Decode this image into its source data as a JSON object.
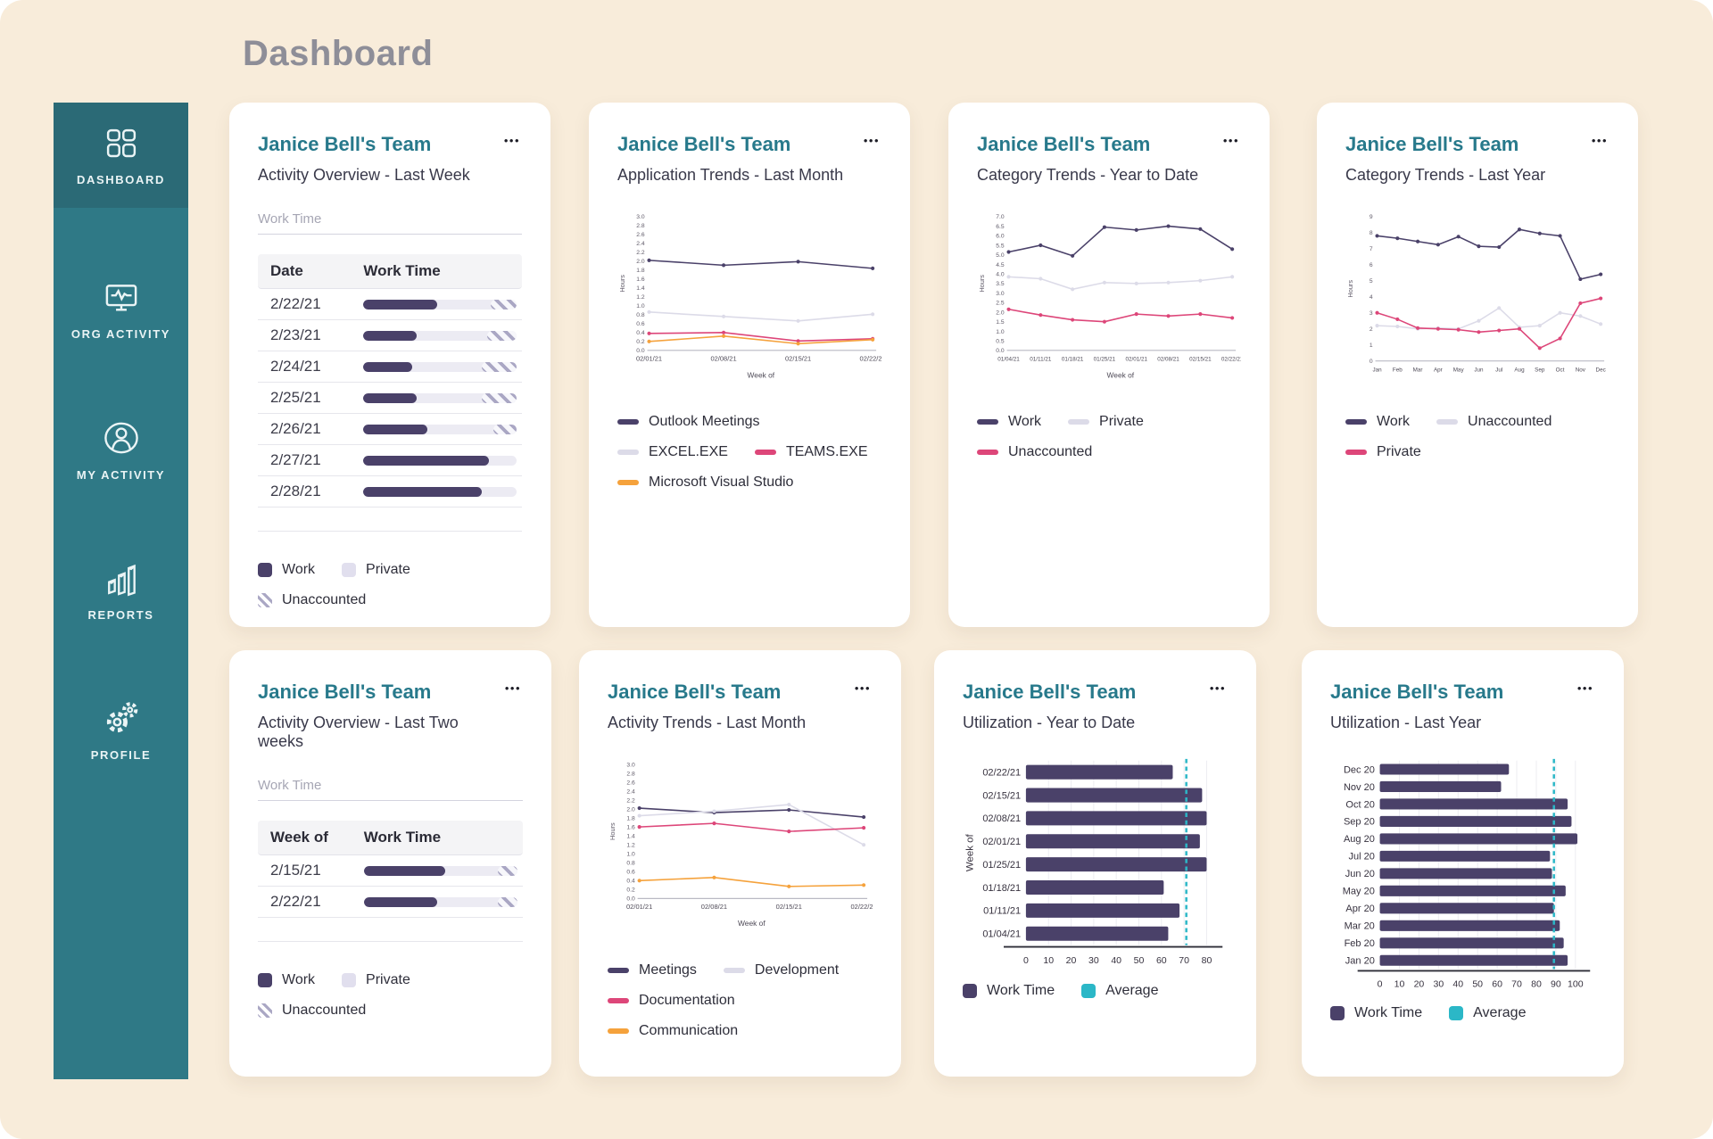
{
  "page_title": "Dashboard",
  "icons": {
    "ellipsis": "•••"
  },
  "colors": {
    "background": "#f8ecda",
    "sidebar": "#2f7986",
    "sidebar_active": "#2b6a76",
    "card_title_teal": "#27798b",
    "work_purple": "#4a4169",
    "private_lavender": "#e1dfee",
    "pink": "#dd4679",
    "orange": "#f5a23c",
    "gray_series": "#dcdbe8",
    "average_teal": "#2bb7c7"
  },
  "sidebar": {
    "items": [
      {
        "label": "DASHBOARD",
        "icon": "grid-icon",
        "active": true
      },
      {
        "label": "ORG ACTIVITY",
        "icon": "monitor-pulse-icon",
        "active": false
      },
      {
        "label": "MY ACTIVITY",
        "icon": "person-circle-icon",
        "active": false
      },
      {
        "label": "REPORTS",
        "icon": "bar-columns-icon",
        "active": false
      },
      {
        "label": "PROFILE",
        "icon": "gears-icon",
        "active": false
      }
    ]
  },
  "cards": [
    {
      "title": "Janice Bell's Team",
      "subtitle": "Activity Overview - Last Week",
      "filter_label": "Work Time",
      "table": {
        "headers": [
          "Date",
          "Work Time"
        ],
        "rows": [
          {
            "label": "2/22/21",
            "work": 48,
            "private": 35,
            "unaccounted": 17
          },
          {
            "label": "2/23/21",
            "work": 35,
            "private": 46,
            "unaccounted": 19
          },
          {
            "label": "2/24/21",
            "work": 32,
            "private": 45,
            "unaccounted": 23
          },
          {
            "label": "2/25/21",
            "work": 35,
            "private": 42,
            "unaccounted": 23
          },
          {
            "label": "2/26/21",
            "work": 42,
            "private": 43,
            "unaccounted": 15
          },
          {
            "label": "2/27/21",
            "work": 82,
            "private": 18,
            "unaccounted": 0
          },
          {
            "label": "2/28/21",
            "work": 77,
            "private": 23,
            "unaccounted": 0
          }
        ]
      },
      "legend": [
        {
          "label": "Work",
          "swatch": "square",
          "color": "#4a4169"
        },
        {
          "label": "Private",
          "swatch": "square",
          "color": "#e1dfee"
        },
        {
          "label": "Unaccounted",
          "swatch": "hatch"
        }
      ]
    },
    {
      "title": "Janice Bell's Team",
      "subtitle": "Application Trends - Last Month",
      "chart": {
        "type": "line",
        "x": [
          "02/01/21",
          "02/08/21",
          "02/15/21",
          "02/22/21"
        ],
        "xlabel": "Week of",
        "ylabel": "Hours",
        "ymin": 0,
        "ymax": 3.0,
        "ystep": 0.2,
        "ydec": 1,
        "series": [
          {
            "name": "Outlook Meetings",
            "color": "#4a4169",
            "values": [
              2.02,
              1.91,
              1.99,
              1.84
            ]
          },
          {
            "name": "EXCEL.EXE",
            "color": "#dcdbe8",
            "values": [
              0.86,
              0.76,
              0.66,
              0.81
            ]
          },
          {
            "name": "TEAMS.EXE",
            "color": "#dd4679",
            "values": [
              0.38,
              0.4,
              0.21,
              0.26
            ]
          },
          {
            "name": "Microsoft Visual Studio",
            "color": "#f5a23c",
            "values": [
              0.2,
              0.32,
              0.15,
              0.24
            ]
          }
        ]
      }
    },
    {
      "title": "Janice Bell's Team",
      "subtitle": "Category Trends -  Year to Date",
      "chart": {
        "type": "line",
        "x": [
          "01/04/21",
          "01/11/21",
          "01/18/21",
          "01/25/21",
          "02/01/21",
          "02/08/21",
          "02/15/21",
          "02/22/21"
        ],
        "xlabel": "Week of",
        "ylabel": "Hours",
        "ymin": 0,
        "ymax": 7.0,
        "ystep": 0.5,
        "ydec": 1,
        "series": [
          {
            "name": "Work",
            "color": "#4a4169",
            "values": [
              5.15,
              5.5,
              4.95,
              6.45,
              6.3,
              6.5,
              6.35,
              5.3
            ]
          },
          {
            "name": "Private",
            "color": "#dcdbe8",
            "values": [
              3.85,
              3.75,
              3.2,
              3.55,
              3.5,
              3.55,
              3.65,
              3.85
            ]
          },
          {
            "name": "Unaccounted",
            "color": "#dd4679",
            "values": [
              2.15,
              1.85,
              1.6,
              1.5,
              1.9,
              1.8,
              1.9,
              1.7
            ]
          }
        ]
      }
    },
    {
      "title": "Janice Bell's Team",
      "subtitle": "Category Trends - Last Year",
      "chart": {
        "type": "line",
        "x": [
          "Jan",
          "Feb",
          "Mar",
          "Apr",
          "May",
          "Jun",
          "Jul",
          "Aug",
          "Sep",
          "Oct",
          "Nov",
          "Dec"
        ],
        "xlabel": "",
        "ylabel": "Hours",
        "ymin": 0,
        "ymax": 9,
        "ystep": 1,
        "ydec": 0,
        "series": [
          {
            "name": "Work",
            "color": "#4a4169",
            "values": [
              7.8,
              7.65,
              7.45,
              7.25,
              7.75,
              7.15,
              7.1,
              8.2,
              7.95,
              7.8,
              5.1,
              5.4
            ]
          },
          {
            "name": "Unaccounted",
            "color": "#dcdbe8",
            "values": [
              2.2,
              2.15,
              2.0,
              2.05,
              2.0,
              2.5,
              3.3,
              2.1,
              2.2,
              3.0,
              2.8,
              2.3
            ]
          },
          {
            "name": "Private",
            "color": "#dd4679",
            "values": [
              3.0,
              2.6,
              2.05,
              2.0,
              1.95,
              1.8,
              1.9,
              2.0,
              0.8,
              1.4,
              3.6,
              3.9
            ]
          }
        ]
      }
    },
    {
      "title": "Janice Bell's Team",
      "subtitle": "Activity Overview -  Last Two weeks",
      "filter_label": "Work Time",
      "table": {
        "headers": [
          "Week of",
          "Work Time"
        ],
        "rows": [
          {
            "label": "2/15/21",
            "work": 53,
            "private": 34,
            "unaccounted": 13
          },
          {
            "label": "2/22/21",
            "work": 48,
            "private": 39,
            "unaccounted": 13
          }
        ]
      },
      "legend": [
        {
          "label": "Work",
          "swatch": "square",
          "color": "#4a4169"
        },
        {
          "label": "Private",
          "swatch": "square",
          "color": "#e1dfee"
        },
        {
          "label": "Unaccounted",
          "swatch": "hatch"
        }
      ]
    },
    {
      "title": "Janice Bell's Team",
      "subtitle": "Activity Trends - Last Month",
      "chart": {
        "type": "line",
        "x": [
          "02/01/21",
          "02/08/21",
          "02/15/21",
          "02/22/21"
        ],
        "xlabel": "Week of",
        "ylabel": "Hours",
        "ymin": 0,
        "ymax": 3.0,
        "ystep": 0.2,
        "ydec": 1,
        "series": [
          {
            "name": "Meetings",
            "color": "#4a4169",
            "values": [
              2.02,
              1.92,
              1.98,
              1.82
            ]
          },
          {
            "name": "Development",
            "color": "#dcdbe8",
            "values": [
              1.85,
              1.95,
              2.1,
              1.2
            ]
          },
          {
            "name": "Documentation",
            "color": "#dd4679",
            "values": [
              1.6,
              1.68,
              1.5,
              1.58
            ]
          },
          {
            "name": "Communication",
            "color": "#f5a23c",
            "values": [
              0.4,
              0.47,
              0.27,
              0.3
            ]
          }
        ]
      }
    },
    {
      "title": "Janice Bell's Team",
      "subtitle": "Utilization -  Year to Date",
      "chart": {
        "type": "hbar",
        "ylabel": "Week of",
        "categories": [
          "02/22/21",
          "02/15/21",
          "02/08/21",
          "02/01/21",
          "01/25/21",
          "01/18/21",
          "01/11/21",
          "01/04/21"
        ],
        "values": [
          65,
          78,
          80,
          77,
          80,
          61,
          68,
          63
        ],
        "average": 71,
        "ticks": [
          0,
          10,
          20,
          30,
          40,
          50,
          60,
          70,
          80
        ],
        "plotmax": 84,
        "bar_color": "#4a4169",
        "average_color": "#2bb7c7"
      },
      "legend": [
        {
          "label": "Work Time",
          "swatch": "square",
          "color": "#4a4169"
        },
        {
          "label": "Average",
          "swatch": "square",
          "color": "#2bb7c7"
        }
      ]
    },
    {
      "title": "Janice Bell's Team",
      "subtitle": "Utilization - Last Year",
      "chart": {
        "type": "hbar",
        "ylabel": "",
        "categories": [
          "Dec 20",
          "Nov 20",
          "Oct 20",
          "Sep 20",
          "Aug 20",
          "Jul 20",
          "Jun 20",
          "May 20",
          "Apr 20",
          "Mar 20",
          "Feb 20",
          "Jan 20"
        ],
        "values": [
          66,
          62,
          96,
          98,
          101,
          87,
          88,
          95,
          89,
          92,
          94,
          96
        ],
        "average": 89,
        "ticks": [
          0,
          10,
          20,
          30,
          40,
          50,
          60,
          70,
          80,
          90,
          100
        ],
        "plotmax": 104,
        "bar_color": "#4a4169",
        "average_color": "#2bb7c7"
      },
      "legend": [
        {
          "label": "Work Time",
          "swatch": "square",
          "color": "#4a4169"
        },
        {
          "label": "Average",
          "swatch": "square",
          "color": "#2bb7c7"
        }
      ]
    }
  ]
}
